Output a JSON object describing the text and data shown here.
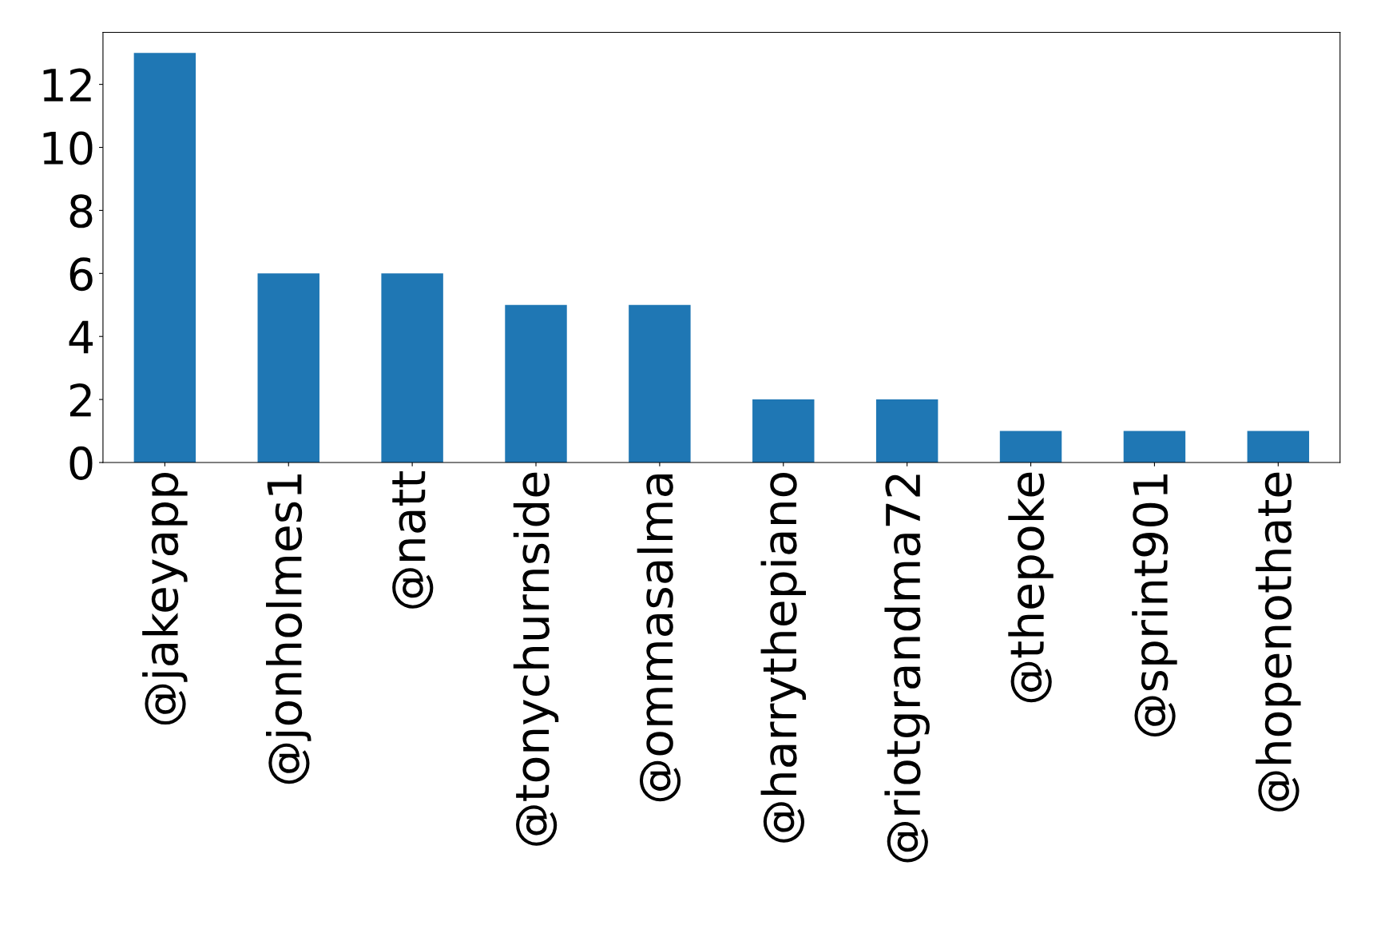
{
  "chart_data": {
    "type": "bar",
    "categories": [
      "@jakeyapp",
      "@jonholmes1",
      "@natt",
      "@tonychurnside",
      "@ommasalma",
      "@harrythepiano",
      "@riotgrandma72",
      "@thepoke",
      "@sprint901",
      "@hopenothate"
    ],
    "values": [
      13,
      6,
      6,
      5,
      5,
      2,
      2,
      1,
      1,
      1
    ],
    "color": "#1f77b4",
    "ylim": [
      0,
      13.65
    ],
    "yticks": [
      0,
      2,
      4,
      6,
      8,
      10,
      12
    ],
    "grid": false
  }
}
